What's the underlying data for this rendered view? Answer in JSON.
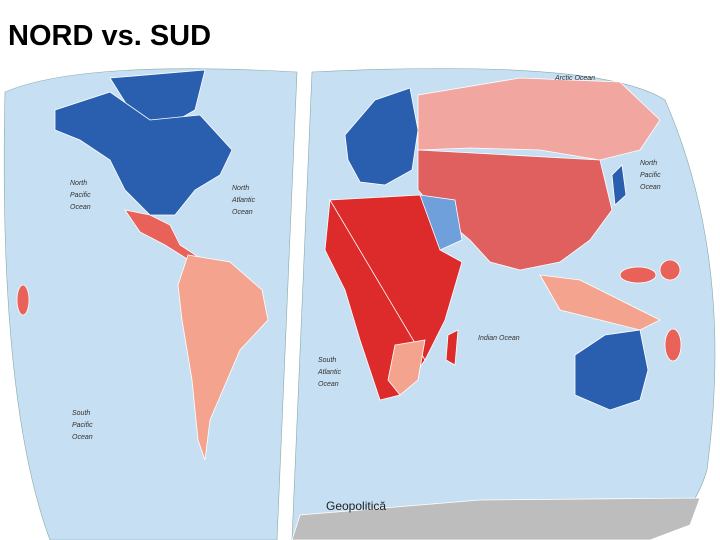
{
  "title": "NORD vs. SUD",
  "footer": "Geopolitică",
  "map": {
    "ocean_labels": [
      [
        "North",
        "Pacific",
        "Ocean"
      ],
      [
        "North",
        "Atlantic",
        "Ocean"
      ],
      [
        "South",
        "Atlantic",
        "Ocean"
      ],
      [
        "South",
        "Pacific",
        "Ocean"
      ],
      [
        "Indian Ocean"
      ],
      [
        "North",
        "Pacific",
        "Ocean"
      ],
      [
        "Arctic Ocean"
      ]
    ]
  }
}
